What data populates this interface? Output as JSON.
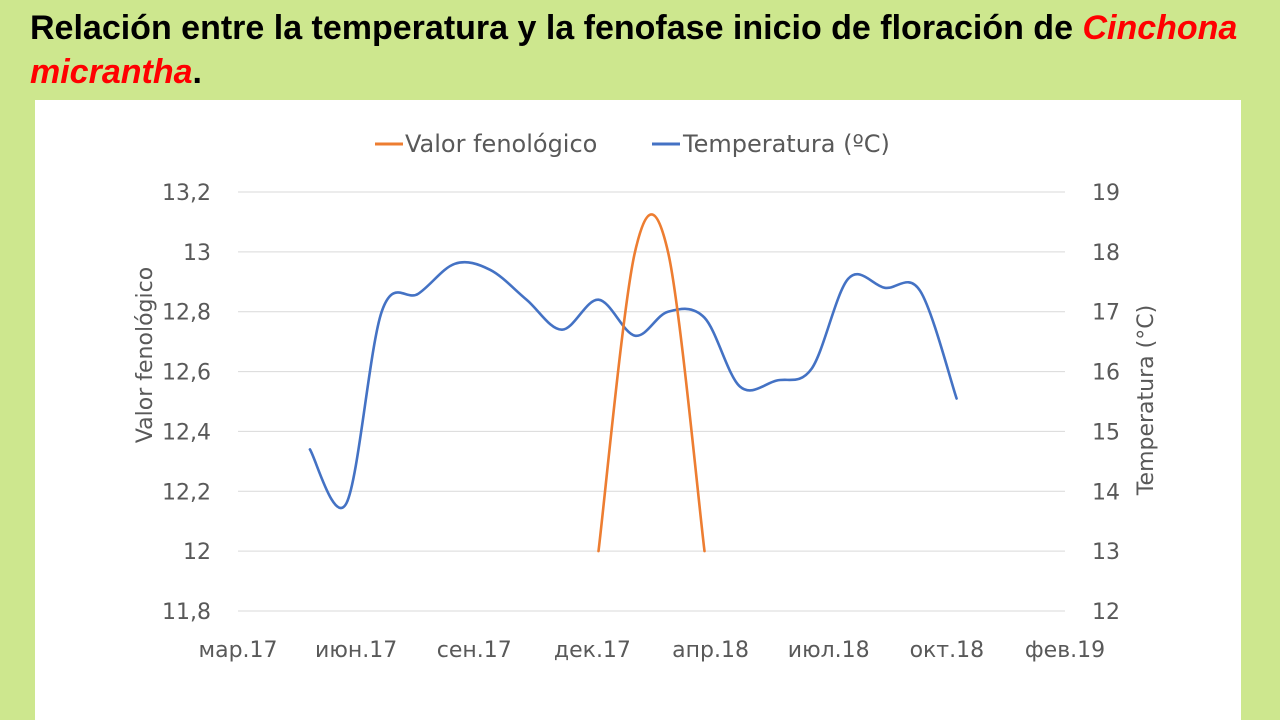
{
  "slide": {
    "title_main": "Relación entre la temperatura y la fenofase inicio de floración de ",
    "title_species": "Cinchona micrantha",
    "title_end": "."
  },
  "chart_data": {
    "type": "line",
    "legend_position": "top",
    "grid": true,
    "x_tick_labels": [
      "мар.17",
      "июн.17",
      "сен.17",
      "дек.17",
      "апр.18",
      "июл.18",
      "окт.18",
      "фев.19"
    ],
    "y_left": {
      "label": "Valor fenológico",
      "range": [
        11.8,
        13.2
      ],
      "tick_labels": [
        "13,2",
        "13",
        "12,8",
        "12,6",
        "12,4",
        "12,2",
        "12",
        "11,8"
      ]
    },
    "y_right": {
      "label": "Temperatura  (°C)",
      "range": [
        12,
        19
      ],
      "tick_labels": [
        "19",
        "18",
        "17",
        "16",
        "15",
        "14",
        "13",
        "12"
      ]
    },
    "series": [
      {
        "name": "Valor fenológico",
        "axis": "left",
        "color": "#ed7d31",
        "points": [
          {
            "x": "2018-01-01",
            "y": 12.0
          },
          {
            "x": "2018-02-01",
            "y": 13.0
          },
          {
            "x": "2018-03-01",
            "y": 13.0
          },
          {
            "x": "2018-04-01",
            "y": 12.0
          }
        ]
      },
      {
        "name": "Temperatura (ºC)",
        "axis": "right",
        "color": "#4472c4",
        "points": [
          {
            "x": "2017-05-01",
            "y": 14.7
          },
          {
            "x": "2017-06-01",
            "y": 13.8
          },
          {
            "x": "2017-07-01",
            "y": 17.0
          },
          {
            "x": "2017-08-01",
            "y": 17.3
          },
          {
            "x": "2017-09-01",
            "y": 17.8
          },
          {
            "x": "2017-10-01",
            "y": 17.7
          },
          {
            "x": "2017-11-01",
            "y": 17.2
          },
          {
            "x": "2017-12-01",
            "y": 16.7
          },
          {
            "x": "2018-01-01",
            "y": 17.2
          },
          {
            "x": "2018-02-01",
            "y": 16.6
          },
          {
            "x": "2018-03-01",
            "y": 17.0
          },
          {
            "x": "2018-04-01",
            "y": 16.9
          },
          {
            "x": "2018-05-01",
            "y": 15.75
          },
          {
            "x": "2018-06-01",
            "y": 15.85
          },
          {
            "x": "2018-07-01",
            "y": 16.05
          },
          {
            "x": "2018-08-01",
            "y": 17.55
          },
          {
            "x": "2018-09-01",
            "y": 17.4
          },
          {
            "x": "2018-10-01",
            "y": 17.35
          },
          {
            "x": "2018-11-01",
            "y": 15.55
          }
        ]
      }
    ]
  }
}
